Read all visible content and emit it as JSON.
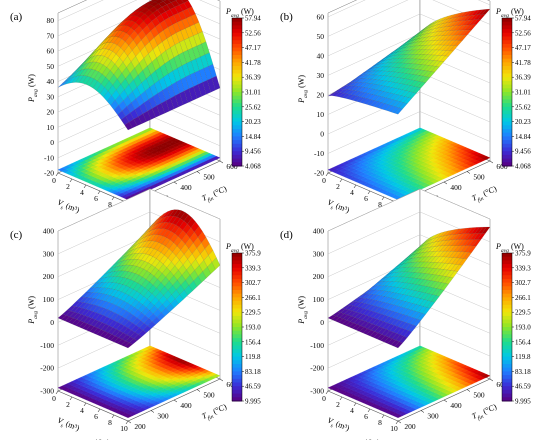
{
  "chart_data": [
    {
      "type": "surface3d",
      "panel_label": "(a)",
      "z_axis": {
        "label": "P_avg (W)",
        "ticks": [
          "-20",
          "-10",
          "0",
          "10",
          "20",
          "30",
          "40",
          "50",
          "60",
          "70",
          "80"
        ],
        "range": [
          -20,
          85
        ]
      },
      "x_axis": {
        "label": "V_s (m³)",
        "ticks": [
          "0",
          "2",
          "4",
          "6",
          "8",
          "10"
        ],
        "multiplier": "×10⁻⁴",
        "range": [
          0,
          10
        ]
      },
      "y_axis": {
        "label": "T_fin (°C)",
        "ticks": [
          "200",
          "300",
          "400",
          "500",
          "600"
        ],
        "range": [
          200,
          600
        ]
      },
      "colorbar": {
        "title": "P_avg (W)",
        "ticks": [
          "57.94",
          "52.56",
          "47.17",
          "41.78",
          "36.39",
          "31.01",
          "25.62",
          "20.23",
          "14.84",
          "9.456",
          "4.068"
        ],
        "range": [
          4.068,
          57.94
        ]
      },
      "peak": {
        "V_s": 5,
        "T_fin": 520,
        "P_avg": 58
      }
    },
    {
      "type": "surface3d",
      "panel_label": "(b)",
      "z_axis": {
        "label": "P_avg (W)",
        "ticks": [
          "-20",
          "-10",
          "0",
          "10",
          "20",
          "30",
          "40",
          "50",
          "60"
        ],
        "range": [
          -20,
          62
        ]
      },
      "x_axis": {
        "label": "V_s (m³)",
        "ticks": [
          "0",
          "2",
          "4",
          "6",
          "8",
          "10"
        ],
        "multiplier": "×10⁻⁴",
        "range": [
          0,
          10
        ]
      },
      "y_axis": {
        "label": "T_fin (°C)",
        "ticks": [
          "200",
          "300",
          "400",
          "500",
          "600"
        ],
        "range": [
          200,
          600
        ]
      },
      "colorbar": {
        "title": "P_avg (W)",
        "ticks": [
          "57.94",
          "52.56",
          "47.17",
          "41.78",
          "36.39",
          "31.01",
          "25.62",
          "20.23",
          "14.84",
          "9.456",
          "4.068"
        ],
        "range": [
          4.068,
          57.94
        ]
      },
      "peak": {
        "V_s": 10,
        "T_fin": 600,
        "P_avg": 58
      }
    },
    {
      "type": "surface3d",
      "panel_label": "(c)",
      "z_axis": {
        "label": "P_avg (W)",
        "ticks": [
          "-300",
          "-200",
          "-100",
          "0",
          "100",
          "200",
          "300",
          "400"
        ],
        "range": [
          -300,
          400
        ]
      },
      "x_axis": {
        "label": "V_s (m³)",
        "ticks": [
          "0",
          "2",
          "4",
          "6",
          "8",
          "10"
        ],
        "multiplier": "×10⁻⁴",
        "range": [
          0,
          10
        ]
      },
      "y_axis": {
        "label": "T_fin (°C)",
        "ticks": [
          "200",
          "300",
          "400",
          "500",
          "600"
        ],
        "range": [
          200,
          600
        ]
      },
      "colorbar": {
        "title": "P_avg (W)",
        "ticks": [
          "375.9",
          "339.3",
          "302.7",
          "266.1",
          "229.5",
          "193.0",
          "156.4",
          "119.8",
          "83.18",
          "46.59",
          "9.995"
        ],
        "range": [
          9.995,
          375.9
        ]
      },
      "peak": {
        "V_s": 7,
        "T_fin": 600,
        "P_avg": 376
      }
    },
    {
      "type": "surface3d",
      "panel_label": "(d)",
      "z_axis": {
        "label": "P_avg (W)",
        "ticks": [
          "-300",
          "-200",
          "-100",
          "0",
          "100",
          "200",
          "300",
          "400"
        ],
        "range": [
          -300,
          400
        ]
      },
      "x_axis": {
        "label": "V_s (m³)",
        "ticks": [
          "0",
          "2",
          "4",
          "6",
          "8",
          "10"
        ],
        "multiplier": "×10⁻⁴",
        "range": [
          0,
          10
        ]
      },
      "y_axis": {
        "label": "T_fin (°C)",
        "ticks": [
          "200",
          "300",
          "400",
          "500",
          "600"
        ],
        "range": [
          200,
          600
        ]
      },
      "colorbar": {
        "title": "P_avg (W)",
        "ticks": [
          "375.9",
          "339.3",
          "302.7",
          "266.1",
          "229.5",
          "193.0",
          "156.4",
          "119.8",
          "83.18",
          "46.59",
          "9.995"
        ],
        "range": [
          9.995,
          375.9
        ]
      },
      "peak": {
        "V_s": 10,
        "T_fin": 600,
        "P_avg": 376
      }
    }
  ],
  "colormap": [
    "#5a0080",
    "#3b2bd6",
    "#1f7fff",
    "#00c8e6",
    "#1fdc8c",
    "#8ce628",
    "#f0e60a",
    "#ffa500",
    "#ff4b00",
    "#e60000",
    "#8c0000"
  ]
}
